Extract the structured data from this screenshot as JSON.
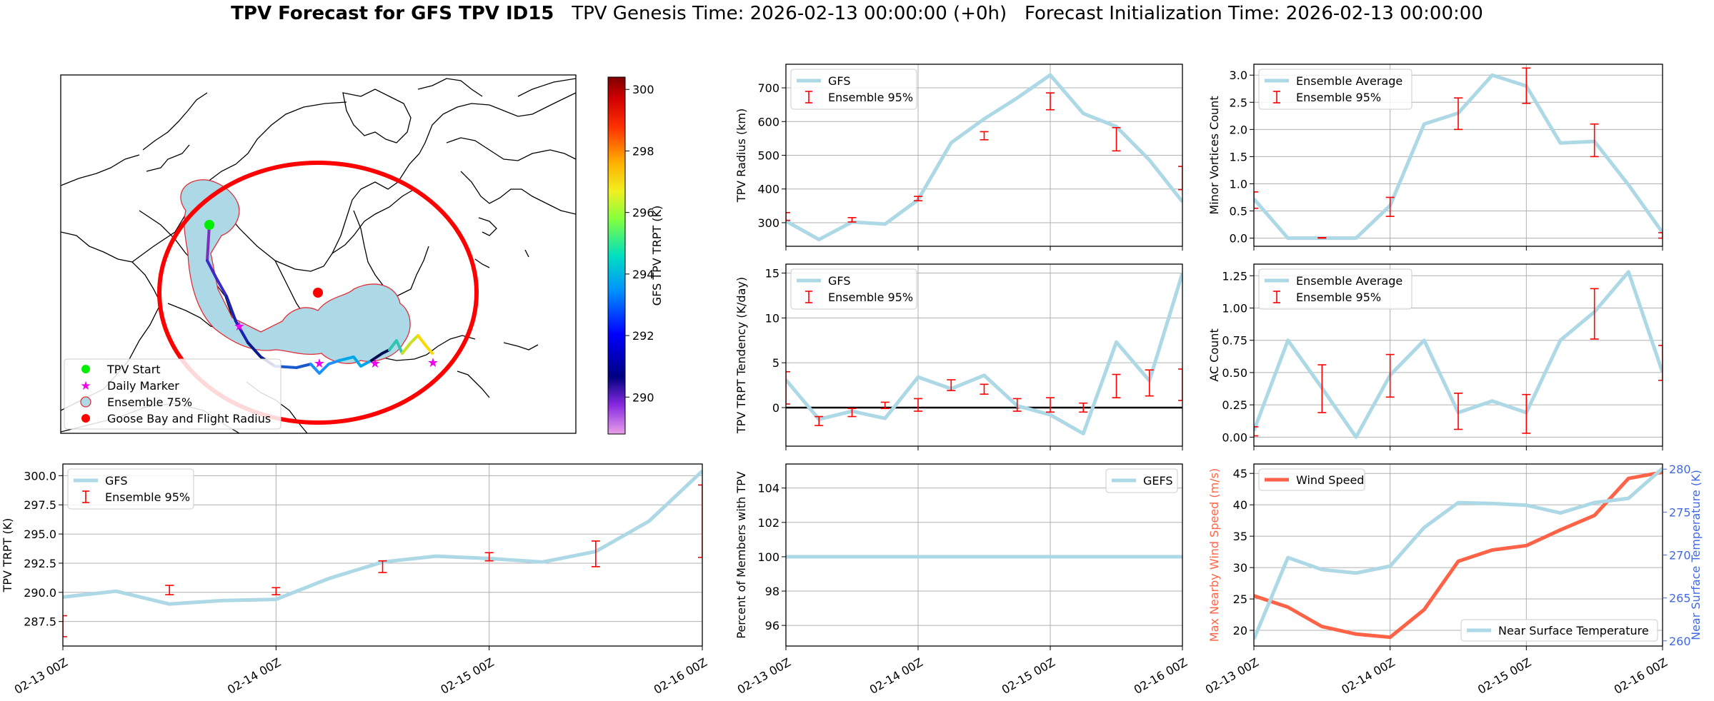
{
  "title": {
    "main": "TPV Forecast for GFS TPV ID15",
    "genesis": "TPV Genesis Time: 2026-02-13 00:00:00 (+0h)",
    "init": "Forecast Initialization Time: 2026-02-13 00:00:00"
  },
  "colors": {
    "gfs": "#add8e6",
    "errorbar": "#ff0000",
    "wind": "#ff6347",
    "temp": "#4169e1",
    "grid": "#b0b0b0",
    "zero_line": "#000000"
  },
  "chart_data": [
    {
      "id": "map",
      "type": "map",
      "title": "TPV track map",
      "legend": {
        "position": "lower-left",
        "entries": [
          "TPV Start",
          "Daily Marker",
          "Ensemble 75%",
          "Goose Bay and Flight Radius"
        ]
      },
      "colorbar": {
        "label": "GFS TPV TRPT (K)",
        "ticks": [
          290,
          292,
          294,
          296,
          298,
          300
        ],
        "range": [
          288.8,
          300.4
        ]
      }
    },
    {
      "id": "radius",
      "type": "line",
      "ylabel": "TPV Radius (km)",
      "x_range": [
        0,
        3
      ],
      "ylim": [
        230,
        770
      ],
      "yticks": [
        300,
        400,
        500,
        600,
        700
      ],
      "ytick_labels": [
        "300",
        "400",
        "500",
        "600",
        "700"
      ],
      "xticks": [
        0,
        1,
        2,
        3
      ],
      "xtick_labels": [
        "02-13 00Z",
        "02-14 00Z",
        "02-15 00Z",
        "02-16 00Z"
      ],
      "show_xtick_labels": false,
      "legend_position": "upper-left",
      "legend": [
        "GFS",
        "Ensemble 95%"
      ],
      "series": [
        {
          "name": "GFS",
          "x": [
            0,
            0.25,
            0.5,
            0.75,
            1.0,
            1.25,
            1.5,
            1.75,
            2.0,
            2.25,
            2.5,
            2.75,
            3.0
          ],
          "y": [
            305,
            250,
            302,
            296,
            368,
            537,
            608,
            670,
            738,
            624,
            585,
            486,
            362
          ]
        }
      ],
      "errorbars": [
        {
          "x": 0,
          "lo": 307,
          "hi": 330
        },
        {
          "x": 0.5,
          "lo": 302,
          "hi": 315
        },
        {
          "x": 1.0,
          "lo": 365,
          "hi": 378
        },
        {
          "x": 1.5,
          "lo": 546,
          "hi": 570
        },
        {
          "x": 2.0,
          "lo": 635,
          "hi": 685
        },
        {
          "x": 2.5,
          "lo": 513,
          "hi": 582
        },
        {
          "x": 3.0,
          "lo": 398,
          "hi": 467
        }
      ]
    },
    {
      "id": "minor",
      "type": "line",
      "ylabel": "Minor Vortices Count",
      "x_range": [
        0,
        3
      ],
      "ylim": [
        -0.15,
        3.2
      ],
      "yticks": [
        0,
        0.5,
        1.0,
        1.5,
        2.0,
        2.5,
        3.0
      ],
      "ytick_labels": [
        "0.0",
        "0.5",
        "1.0",
        "1.5",
        "2.0",
        "2.5",
        "3.0"
      ],
      "xticks": [
        0,
        1,
        2,
        3
      ],
      "xtick_labels": [
        "02-13 00Z",
        "02-14 00Z",
        "02-15 00Z",
        "02-16 00Z"
      ],
      "show_xtick_labels": false,
      "legend_position": "upper-left",
      "legend": [
        "Ensemble Average",
        "Ensemble 95%"
      ],
      "series": [
        {
          "name": "Ensemble Average",
          "x": [
            0,
            0.25,
            0.5,
            0.75,
            1.0,
            1.25,
            1.5,
            1.75,
            2.0,
            2.25,
            2.5,
            2.75,
            3.0
          ],
          "y": [
            0.72,
            0,
            0,
            0,
            0.6,
            2.1,
            2.3,
            3.0,
            2.8,
            1.75,
            1.78,
            0.98,
            0.1
          ]
        }
      ],
      "errorbars": [
        {
          "x": 0,
          "lo": 0.55,
          "hi": 0.85
        },
        {
          "x": 0.5,
          "lo": 0,
          "hi": 0.01
        },
        {
          "x": 1.0,
          "lo": 0.4,
          "hi": 0.75
        },
        {
          "x": 1.5,
          "lo": 2.0,
          "hi": 2.58
        },
        {
          "x": 2.0,
          "lo": 2.48,
          "hi": 3.13
        },
        {
          "x": 2.5,
          "lo": 1.5,
          "hi": 2.1
        },
        {
          "x": 3.0,
          "lo": 0,
          "hi": 0.1
        }
      ]
    },
    {
      "id": "tendency",
      "type": "line",
      "ylabel": "TPV TRPT Tendency (K/day)",
      "x_range": [
        0,
        3
      ],
      "ylim": [
        -4.3,
        16.0
      ],
      "yticks": [
        0,
        5,
        10,
        15
      ],
      "ytick_labels": [
        "0",
        "5",
        "10",
        "15"
      ],
      "xticks": [
        0,
        1,
        2,
        3
      ],
      "xtick_labels": [
        "02-13 00Z",
        "02-14 00Z",
        "02-15 00Z",
        "02-16 00Z"
      ],
      "show_xtick_labels": false,
      "zero_line": 0,
      "legend_position": "upper-left",
      "legend": [
        "GFS",
        "Ensemble 95%"
      ],
      "series": [
        {
          "name": "GFS",
          "x": [
            0,
            0.25,
            0.5,
            0.75,
            1.0,
            1.25,
            1.5,
            1.75,
            2.0,
            2.25,
            2.5,
            2.75,
            3.0
          ],
          "y": [
            3.1,
            -1.3,
            -0.4,
            -1.2,
            3.4,
            2.1,
            3.6,
            0.2,
            -0.8,
            -2.9,
            7.3,
            3.0,
            15.0
          ]
        }
      ],
      "errorbars": [
        {
          "x": 0,
          "lo": 0.4,
          "hi": 4.0
        },
        {
          "x": 0.25,
          "lo": -2.0,
          "hi": -1.0
        },
        {
          "x": 0.5,
          "lo": -1.0,
          "hi": -0.1
        },
        {
          "x": 0.75,
          "lo": -0.1,
          "hi": 0.6
        },
        {
          "x": 1.0,
          "lo": -0.4,
          "hi": 1.0
        },
        {
          "x": 1.25,
          "lo": 1.9,
          "hi": 3.1
        },
        {
          "x": 1.5,
          "lo": 1.5,
          "hi": 2.6
        },
        {
          "x": 1.75,
          "lo": -0.4,
          "hi": 1.0
        },
        {
          "x": 2.0,
          "lo": -0.5,
          "hi": 1.1
        },
        {
          "x": 2.25,
          "lo": -0.5,
          "hi": 0.5
        },
        {
          "x": 2.5,
          "lo": 1.1,
          "hi": 3.7
        },
        {
          "x": 2.75,
          "lo": 1.3,
          "hi": 4.2
        },
        {
          "x": 3.0,
          "lo": 0.8,
          "hi": 4.3
        }
      ]
    },
    {
      "id": "ac",
      "type": "line",
      "ylabel": "AC Count",
      "x_range": [
        0,
        3
      ],
      "ylim": [
        -0.07,
        1.34
      ],
      "yticks": [
        0,
        0.25,
        0.5,
        0.75,
        1.0,
        1.25
      ],
      "ytick_labels": [
        "0.00",
        "0.25",
        "0.50",
        "0.75",
        "1.00",
        "1.25"
      ],
      "xticks": [
        0,
        1,
        2,
        3
      ],
      "xtick_labels": [
        "02-13 00Z",
        "02-14 00Z",
        "02-15 00Z",
        "02-16 00Z"
      ],
      "show_xtick_labels": false,
      "legend_position": "upper-left",
      "legend": [
        "Ensemble Average",
        "Ensemble 95%"
      ],
      "series": [
        {
          "name": "Ensemble Average",
          "x": [
            0,
            0.25,
            0.5,
            0.75,
            1.0,
            1.25,
            1.5,
            1.75,
            2.0,
            2.25,
            2.5,
            2.75,
            3.0
          ],
          "y": [
            0.05,
            0.75,
            0.38,
            0,
            0.48,
            0.75,
            0.19,
            0.28,
            0.19,
            0.75,
            0.97,
            1.28,
            0.5
          ]
        }
      ],
      "errorbars": [
        {
          "x": 0,
          "lo": 0.01,
          "hi": 0.08
        },
        {
          "x": 0.5,
          "lo": 0.19,
          "hi": 0.56
        },
        {
          "x": 1.0,
          "lo": 0.31,
          "hi": 0.64
        },
        {
          "x": 1.5,
          "lo": 0.06,
          "hi": 0.34
        },
        {
          "x": 2.0,
          "lo": 0.03,
          "hi": 0.33
        },
        {
          "x": 2.5,
          "lo": 0.76,
          "hi": 1.15
        },
        {
          "x": 3.0,
          "lo": 0.44,
          "hi": 0.71
        }
      ]
    },
    {
      "id": "trpt",
      "type": "line",
      "ylabel": "TPV TRPT (K)",
      "x_range": [
        0,
        3
      ],
      "ylim": [
        285.4,
        301.0
      ],
      "yticks": [
        287.5,
        290.0,
        292.5,
        295.0,
        297.5,
        300.0
      ],
      "ytick_labels": [
        "287.5",
        "290.0",
        "292.5",
        "295.0",
        "297.5",
        "300.0"
      ],
      "xticks": [
        0,
        1,
        2,
        3
      ],
      "xtick_labels": [
        "02-13 00Z",
        "02-14 00Z",
        "02-15 00Z",
        "02-16 00Z"
      ],
      "show_xtick_labels": true,
      "legend_position": "upper-left",
      "legend": [
        "GFS",
        "Ensemble 95%"
      ],
      "series": [
        {
          "name": "GFS",
          "x": [
            0,
            0.25,
            0.5,
            0.75,
            1.0,
            1.25,
            1.5,
            1.75,
            2.0,
            2.25,
            2.5,
            2.75,
            3.0
          ],
          "y": [
            289.6,
            290.1,
            289.0,
            289.3,
            289.4,
            291.2,
            292.6,
            293.1,
            292.9,
            292.6,
            293.5,
            296.1,
            300.4
          ]
        }
      ],
      "errorbars": [
        {
          "x": 0,
          "lo": 286.2,
          "hi": 288.0
        },
        {
          "x": 0.5,
          "lo": 289.8,
          "hi": 290.6
        },
        {
          "x": 1.0,
          "lo": 289.8,
          "hi": 290.4
        },
        {
          "x": 1.5,
          "lo": 291.7,
          "hi": 292.7
        },
        {
          "x": 2.0,
          "lo": 292.7,
          "hi": 293.4
        },
        {
          "x": 2.5,
          "lo": 292.2,
          "hi": 294.4
        },
        {
          "x": 3.0,
          "lo": 293.0,
          "hi": 299.2
        }
      ]
    },
    {
      "id": "percent",
      "type": "line",
      "ylabel": "Percent of Members with TPV",
      "x_range": [
        0,
        3
      ],
      "ylim": [
        94.8,
        105.4
      ],
      "yticks": [
        96,
        98,
        100,
        102,
        104
      ],
      "ytick_labels": [
        "96",
        "98",
        "100",
        "102",
        "104"
      ],
      "xticks": [
        0,
        1,
        2,
        3
      ],
      "xtick_labels": [
        "02-13 00Z",
        "02-14 00Z",
        "02-15 00Z",
        "02-16 00Z"
      ],
      "show_xtick_labels": true,
      "legend_position": "upper-right",
      "legend": [
        "GEFS"
      ],
      "series": [
        {
          "name": "GEFS",
          "x": [
            0,
            0.25,
            0.5,
            0.75,
            1.0,
            1.25,
            1.5,
            1.75,
            2.0,
            2.25,
            2.5,
            2.75,
            3.0
          ],
          "y": [
            100,
            100,
            100,
            100,
            100,
            100,
            100,
            100,
            100,
            100,
            100,
            100,
            100
          ]
        }
      ],
      "errorbars": []
    },
    {
      "id": "wind",
      "type": "line",
      "ylabel": "Max Nearby Wind Speed (m/s)",
      "ylabel2": "Near Surface Temperature (K)",
      "x_range": [
        0,
        3
      ],
      "ylim": [
        17.5,
        46.5
      ],
      "ylim2": [
        259.4,
        280.6
      ],
      "yticks": [
        20,
        25,
        30,
        35,
        40,
        45
      ],
      "ytick_labels": [
        "20",
        "25",
        "30",
        "35",
        "40",
        "45"
      ],
      "yticks2": [
        260,
        265,
        270,
        275,
        280
      ],
      "ytick_labels2": [
        "260",
        "265",
        "270",
        "275",
        "280"
      ],
      "xticks": [
        0,
        1,
        2,
        3
      ],
      "xtick_labels": [
        "02-13 00Z",
        "02-14 00Z",
        "02-15 00Z",
        "02-16 00Z"
      ],
      "show_xtick_labels": true,
      "legend": [
        "Wind Speed",
        "Near Surface Temperature"
      ],
      "series": [
        {
          "name": "Wind Speed",
          "axis": "left",
          "x": [
            0,
            0.25,
            0.5,
            0.75,
            1.0,
            1.25,
            1.5,
            1.75,
            2.0,
            2.25,
            2.5,
            2.75,
            3.0
          ],
          "y": [
            25.5,
            23.7,
            20.6,
            19.4,
            18.9,
            23.3,
            31.0,
            32.8,
            33.5,
            36.0,
            38.3,
            44.2,
            45.2
          ]
        },
        {
          "name": "Near Surface Temperature",
          "axis": "right",
          "x": [
            0,
            0.25,
            0.5,
            0.75,
            1.0,
            1.25,
            1.5,
            1.75,
            2.0,
            2.25,
            2.5,
            2.75,
            3.0
          ],
          "y": [
            260.2,
            269.7,
            268.3,
            267.9,
            268.7,
            273.2,
            276.1,
            276.0,
            275.8,
            274.9,
            276.1,
            276.6,
            280.1
          ]
        }
      ],
      "errorbars": []
    }
  ]
}
